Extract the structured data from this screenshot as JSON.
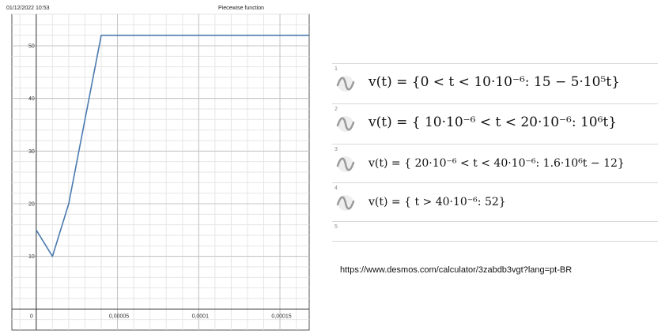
{
  "header": {
    "timestamp": "01/12/2022 10:53",
    "title": "Piecewise function"
  },
  "chart_data": {
    "type": "line",
    "title": "Piecewise function",
    "xlim": [
      -1.5e-05,
      0.000168
    ],
    "ylim": [
      -4,
      56
    ],
    "x_ticks": [
      {
        "value": 0,
        "label": "0"
      },
      {
        "value": 5e-05,
        "label": "0,00005"
      },
      {
        "value": 0.0001,
        "label": "0,0001"
      },
      {
        "value": 0.00015,
        "label": "0,00015"
      }
    ],
    "y_ticks": [
      {
        "value": 10,
        "label": "10"
      },
      {
        "value": 20,
        "label": "20"
      },
      {
        "value": 30,
        "label": "30"
      },
      {
        "value": 40,
        "label": "40"
      },
      {
        "value": 50,
        "label": "50"
      }
    ],
    "grid": true,
    "series": [
      {
        "color": "#4a7ab0",
        "points": [
          {
            "x": 0,
            "y": 15
          },
          {
            "x": 1e-05,
            "y": 10
          },
          {
            "x": 2e-05,
            "y": 20
          },
          {
            "x": 4e-05,
            "y": 52
          },
          {
            "x": 0.000168,
            "y": 52
          }
        ]
      }
    ]
  },
  "expressions": [
    {
      "number": "1",
      "icon": "wave-icon",
      "text": "v(t) = {0 < t < 10·10⁻⁶: 15 − 5·10⁵t}"
    },
    {
      "number": "2",
      "icon": "wave-icon",
      "text": "v(t) = { 10·10⁻⁶ < t < 20·10⁻⁶: 10⁶t}"
    },
    {
      "number": "3",
      "icon": "wave-icon",
      "text": "v(t) = { 20·10⁻⁶ < t < 40·10⁻⁶: 1.6·10⁶t − 12}"
    },
    {
      "number": "4",
      "icon": "wave-icon",
      "text": "v(t) = { t > 40·10⁻⁶: 52}"
    },
    {
      "number": "5"
    }
  ],
  "url": "https://www.desmos.com/calculator/3zabdb3vgt?lang=pt-BR"
}
